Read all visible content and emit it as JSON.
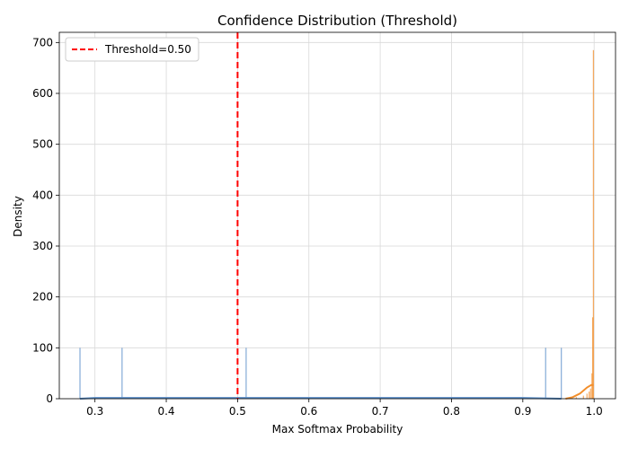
{
  "chart_data": {
    "type": "histogram",
    "title": "Confidence Distribution (Threshold)",
    "xlabel": "Max Softmax Probability",
    "ylabel": "Density",
    "xlim": [
      0.25,
      1.03
    ],
    "ylim": [
      0,
      720
    ],
    "x_ticks": [
      0.3,
      0.4,
      0.5,
      0.6,
      0.7,
      0.8,
      0.9,
      1.0
    ],
    "x_tick_labels": [
      "0.3",
      "0.4",
      "0.5",
      "0.6",
      "0.7",
      "0.8",
      "0.9",
      "1.0"
    ],
    "y_ticks": [
      0,
      100,
      200,
      300,
      400,
      500,
      600,
      700
    ],
    "y_tick_labels": [
      "0",
      "100",
      "200",
      "300",
      "400",
      "500",
      "600",
      "700"
    ],
    "grid": true,
    "legend": {
      "placement": "top-left",
      "entries": [
        {
          "label": "Threshold=0.50",
          "style": "dashed",
          "color": "#ff0000"
        }
      ]
    },
    "threshold": {
      "x": 0.5,
      "color": "#ff0000"
    },
    "series": [
      {
        "color": "#5b8fc9",
        "bars": [
          {
            "x": 0.279,
            "y": 100
          },
          {
            "x": 0.338,
            "y": 100
          },
          {
            "x": 0.512,
            "y": 100
          },
          {
            "x": 0.932,
            "y": 100
          },
          {
            "x": 0.954,
            "y": 100
          }
        ],
        "kde": [
          {
            "x": 0.279,
            "y": 0
          },
          {
            "x": 0.3,
            "y": 1.5
          },
          {
            "x": 0.5,
            "y": 1.5
          },
          {
            "x": 0.7,
            "y": 1.5
          },
          {
            "x": 0.9,
            "y": 1.5
          },
          {
            "x": 0.954,
            "y": 0
          }
        ]
      },
      {
        "color": "#f28e2b",
        "bars": [
          {
            "x": 0.975,
            "y": 3
          },
          {
            "x": 0.985,
            "y": 6
          },
          {
            "x": 0.99,
            "y": 10
          },
          {
            "x": 0.993,
            "y": 14
          },
          {
            "x": 0.995,
            "y": 20
          },
          {
            "x": 0.997,
            "y": 50
          },
          {
            "x": 0.998,
            "y": 160
          },
          {
            "x": 0.999,
            "y": 685
          }
        ],
        "kde": [
          {
            "x": 0.96,
            "y": 0
          },
          {
            "x": 0.97,
            "y": 3
          },
          {
            "x": 0.98,
            "y": 10
          },
          {
            "x": 0.99,
            "y": 22
          },
          {
            "x": 0.996,
            "y": 27
          },
          {
            "x": 0.999,
            "y": 27
          }
        ]
      }
    ]
  }
}
